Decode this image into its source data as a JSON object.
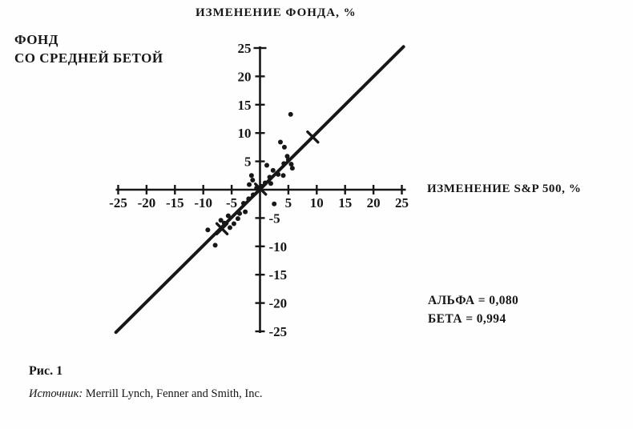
{
  "page": {
    "background": "#fefefe",
    "ink_color": "#171717"
  },
  "header": {
    "fund_label_line1": "ФОНД",
    "fund_label_line2": "СО СРЕДНЕЙ БЕТОЙ"
  },
  "chart_data": {
    "type": "scatter",
    "title": "ИЗМЕНЕНИЕ ФОНДА, %",
    "xlabel": "ИЗМЕНЕНИЕ S&P 500, %",
    "ylabel": "ИЗМЕНЕНИЕ ФОНДА, %",
    "xlim": [
      -26,
      26
    ],
    "ylim": [
      -26,
      26
    ],
    "grid": false,
    "x_ticks": [
      -25,
      -20,
      -15,
      -10,
      -5,
      5,
      10,
      15,
      20,
      25
    ],
    "y_ticks": [
      25,
      20,
      15,
      10,
      5,
      -5,
      -10,
      -15,
      -20,
      -25
    ],
    "points": [
      [
        5.4,
        13.3
      ],
      [
        3.6,
        8.4
      ],
      [
        4.3,
        7.5
      ],
      [
        4.8,
        5.9
      ],
      [
        5.0,
        5.3
      ],
      [
        4.2,
        4.6
      ],
      [
        1.2,
        4.3
      ],
      [
        2.3,
        3.4
      ],
      [
        3.2,
        2.7
      ],
      [
        5.7,
        3.8
      ],
      [
        5.5,
        4.5
      ],
      [
        4.1,
        2.5
      ],
      [
        1.7,
        2.2
      ],
      [
        0.9,
        1.2
      ],
      [
        1.9,
        1.1
      ],
      [
        0.3,
        0.6
      ],
      [
        -0.6,
        0.3
      ],
      [
        -1.3,
        1.7
      ],
      [
        -1.9,
        0.9
      ],
      [
        -1.5,
        2.5
      ],
      [
        2.5,
        -2.5
      ],
      [
        -1.2,
        -0.9
      ],
      [
        -2.0,
        -1.6
      ],
      [
        -2.9,
        -2.4
      ],
      [
        -2.6,
        -3.9
      ],
      [
        -3.6,
        -4.2
      ],
      [
        -3.9,
        -5.1
      ],
      [
        -4.6,
        -6.0
      ],
      [
        -5.3,
        -6.7
      ],
      [
        -5.6,
        -4.6
      ],
      [
        -6.3,
        -5.9
      ],
      [
        -6.9,
        -5.4
      ],
      [
        -9.2,
        -7.1
      ],
      [
        -7.9,
        -9.8
      ]
    ],
    "cross_markers": [
      [
        9.3,
        9.3
      ],
      [
        0.1,
        0.1
      ],
      [
        -6.7,
        -6.9
      ]
    ],
    "regression": {
      "alpha": 0.08,
      "beta": 0.994,
      "x_start": -25.4,
      "x_end": 25.3
    },
    "alpha_label": "АЛЬФА = 0,080",
    "beta_label": "БЕТА = 0,994"
  },
  "caption": {
    "figure": "Рис. 1",
    "source_label": "Источник:",
    "source_text": " Merrill Lynch, Fenner and Smith, Inc."
  }
}
